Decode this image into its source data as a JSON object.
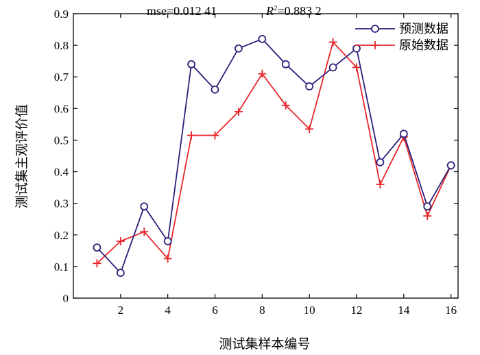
{
  "chart_data": {
    "type": "line",
    "xlabel": "测试集样本编号",
    "ylabel": "测试集主观评价值",
    "annotation": {
      "mse": "mse=0.012 41",
      "r2_symbol": "R",
      "r2_sup": "2",
      "r2_value": "=0.883 2"
    },
    "xlim": [
      0,
      16.3
    ],
    "ylim": [
      0,
      0.9
    ],
    "xticks": [
      2,
      4,
      6,
      8,
      10,
      12,
      14,
      16
    ],
    "yticks": [
      0,
      0.1,
      0.2,
      0.3,
      0.4,
      0.5,
      0.6,
      0.7,
      0.8,
      0.9
    ],
    "ytick_labels": [
      "0",
      "0.1",
      "0.2",
      "0.3",
      "0.4",
      "0.5",
      "0.6",
      "0.7",
      "0.8",
      "0.9"
    ],
    "x": [
      1,
      2,
      3,
      4,
      5,
      6,
      7,
      8,
      9,
      10,
      11,
      12,
      13,
      14,
      15,
      16
    ],
    "legend_position": "top-right",
    "series": [
      {
        "name": "预测数据",
        "marker": "circle",
        "color": "#2a1f7a",
        "values": [
          0.16,
          0.08,
          0.29,
          0.18,
          0.74,
          0.66,
          0.79,
          0.82,
          0.74,
          0.67,
          0.73,
          0.79,
          0.43,
          0.52,
          0.29,
          0.42
        ]
      },
      {
        "name": "原始数据",
        "marker": "plus",
        "color": "#e8262a",
        "values": [
          0.11,
          0.18,
          0.21,
          0.125,
          0.515,
          0.515,
          0.59,
          0.71,
          0.61,
          0.535,
          0.81,
          0.73,
          0.36,
          0.51,
          0.26,
          0.42
        ]
      }
    ]
  }
}
